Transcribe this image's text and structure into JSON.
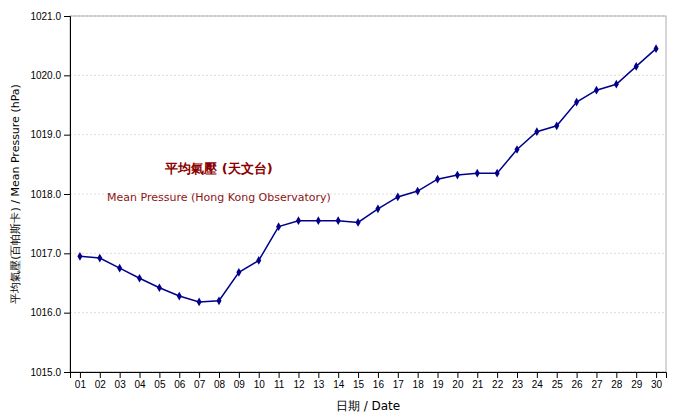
{
  "chart_data": {
    "type": "line",
    "xlabel": "日期 / Date",
    "ylabel": "平均氣壓(百帕斯卡) / Mean Pressure (hPa)",
    "x": [
      1,
      2,
      3,
      4,
      5,
      6,
      7,
      8,
      9,
      10,
      11,
      12,
      13,
      14,
      15,
      16,
      17,
      18,
      19,
      20,
      21,
      22,
      23,
      24,
      25,
      26,
      27,
      28,
      29,
      30
    ],
    "values": [
      1016.95,
      1016.92,
      1016.75,
      1016.58,
      1016.42,
      1016.28,
      1016.18,
      1016.2,
      1016.68,
      1016.88,
      1017.45,
      1017.55,
      1017.55,
      1017.55,
      1017.52,
      1017.75,
      1017.95,
      1018.05,
      1018.25,
      1018.32,
      1018.35,
      1018.35,
      1018.75,
      1019.05,
      1019.15,
      1019.55,
      1019.75,
      1019.85,
      1020.15,
      1020.45
    ],
    "color": "#00008B",
    "marker": "diamond",
    "xlim": [
      0.5,
      30.5
    ],
    "xticks": [
      {
        "value": 1,
        "label": "01"
      },
      {
        "value": 2,
        "label": "02"
      },
      {
        "value": 3,
        "label": "03"
      },
      {
        "value": 4,
        "label": "04"
      },
      {
        "value": 5,
        "label": "05"
      },
      {
        "value": 6,
        "label": "06"
      },
      {
        "value": 7,
        "label": "07"
      },
      {
        "value": 8,
        "label": "08"
      },
      {
        "value": 9,
        "label": "09"
      },
      {
        "value": 10,
        "label": "10"
      },
      {
        "value": 11,
        "label": "11"
      },
      {
        "value": 12,
        "label": "12"
      },
      {
        "value": 13,
        "label": "13"
      },
      {
        "value": 14,
        "label": "14"
      },
      {
        "value": 15,
        "label": "15"
      },
      {
        "value": 16,
        "label": "16"
      },
      {
        "value": 17,
        "label": "17"
      },
      {
        "value": 18,
        "label": "18"
      },
      {
        "value": 19,
        "label": "19"
      },
      {
        "value": 20,
        "label": "20"
      },
      {
        "value": 21,
        "label": "21"
      },
      {
        "value": 22,
        "label": "22"
      },
      {
        "value": 23,
        "label": "23"
      },
      {
        "value": 24,
        "label": "24"
      },
      {
        "value": 25,
        "label": "25"
      },
      {
        "value": 26,
        "label": "26"
      },
      {
        "value": 27,
        "label": "27"
      },
      {
        "value": 28,
        "label": "28"
      },
      {
        "value": 29,
        "label": "29"
      },
      {
        "value": 30,
        "label": "30"
      }
    ],
    "ylim": [
      1015.0,
      1021.0
    ],
    "yticks": [
      {
        "value": 1015.0,
        "label": "1015.0"
      },
      {
        "value": 1016.0,
        "label": "1016.0"
      },
      {
        "value": 1017.0,
        "label": "1017.0"
      },
      {
        "value": 1018.0,
        "label": "1018.0"
      },
      {
        "value": 1019.0,
        "label": "1019.0"
      },
      {
        "value": 1020.0,
        "label": "1020.0"
      },
      {
        "value": 1021.0,
        "label": "1021.0"
      }
    ],
    "grid": true,
    "annotations": [
      {
        "text": "平均氣壓 (天文台)",
        "color": "#8B0000"
      },
      {
        "text": "Mean Pressure (Hong Kong Observatory)",
        "color": "#8B1414"
      }
    ]
  }
}
